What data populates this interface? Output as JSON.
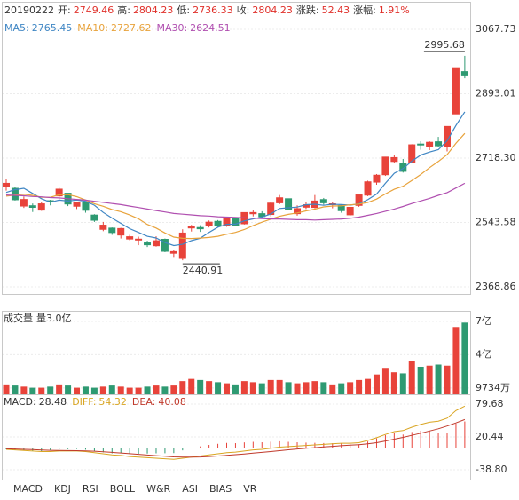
{
  "chart_data": {
    "type": "candlestick",
    "info": {
      "date": "20190222",
      "labels": [
        "开:",
        "高:",
        "低:",
        "收:",
        "涨跌:",
        "涨幅:"
      ],
      "change": 52.43,
      "change_pct_label": "1.91%"
    },
    "open": [
      2640.0,
      2636.3,
      2588.1,
      2588.9,
      2577.1,
      2602.5,
      2615.6,
      2622.9,
      2587.6,
      2597.6,
      2563.6,
      2524.9,
      2528.2,
      2509.5,
      2498.7,
      2497.4,
      2488.1,
      2480.5,
      2497.8,
      2460.0,
      2446.0,
      2528.7,
      2529.8,
      2534.1,
      2546.6,
      2534.6,
      2554.1,
      2540.0,
      2567.2,
      2567.4,
      2565.2,
      2596.9,
      2607.9,
      2567.4,
      2585.0,
      2584.4,
      2605.6,
      2592.5,
      2589.4,
      2564.3,
      2589.9,
      2617.7,
      2653.1,
      2673.2,
      2709.2,
      2702.7,
      2707.4,
      2756.4,
      2750.6,
      2762.6,
      2749.46,
      2838.3,
      2953.0
    ],
    "high": [
      2661,
      2640,
      2614,
      2595,
      2598,
      2605,
      2638,
      2623,
      2600,
      2598,
      2566,
      2545,
      2530,
      2529,
      2510,
      2505,
      2494,
      2506,
      2500,
      2469,
      2525,
      2537,
      2536,
      2549,
      2550,
      2556,
      2556,
      2571,
      2578,
      2574,
      2598,
      2618,
      2608,
      2590,
      2598,
      2618,
      2610,
      2598,
      2592,
      2586,
      2618.5,
      2657,
      2675,
      2722,
      2727,
      2716,
      2756,
      2764,
      2764,
      2776,
      2804.23,
      2961.5,
      2995.68
    ],
    "low": [
      2630,
      2603,
      2583,
      2572,
      2575,
      2590,
      2606,
      2588,
      2580,
      2570,
      2545,
      2520,
      2510,
      2500,
      2495,
      2482,
      2477,
      2478,
      2463,
      2450,
      2440.91,
      2519,
      2518,
      2530,
      2530,
      2532,
      2534,
      2538,
      2560,
      2555,
      2560,
      2593,
      2577,
      2562,
      2580,
      2582,
      2592,
      2582,
      2570,
      2562,
      2586,
      2615,
      2646,
      2670,
      2705,
      2679,
      2706,
      2741,
      2740,
      2748,
      2736.33,
      2838,
      2935
    ],
    "close": [
      2649.81,
      2605.18,
      2605.89,
      2584.58,
      2594.09,
      2602.15,
      2634.05,
      2593.74,
      2597.97,
      2576.65,
      2549.56,
      2536.27,
      2516.25,
      2527.01,
      2504.82,
      2498.29,
      2483.09,
      2493.9,
      2465.29,
      2464.36,
      2514.87,
      2533.09,
      2526.46,
      2544.34,
      2535.1,
      2553.83,
      2535.77,
      2570.34,
      2570.42,
      2559.64,
      2596.01,
      2610.51,
      2579.7,
      2581.0,
      2591.69,
      2601.72,
      2596.98,
      2594.25,
      2575.58,
      2584.57,
      2618.23,
      2653.9,
      2671.89,
      2721.07,
      2719.7,
      2682.39,
      2754.36,
      2755.65,
      2761.22,
      2751.8,
      2804.23,
      2961.28,
      2941.52
    ],
    "ylim": [
      2349.6,
      3099.1
    ],
    "yticks": [
      2368.86,
      2543.58,
      {
        "value": 2718.3,
        "label": "2718.30"
      },
      2893.01,
      3067.73
    ],
    "up_color": "#e8433a",
    "down_color": "#2e9a72",
    "ma": [
      {
        "name": "MA5:",
        "color": "#3f86c4",
        "values": [
          2625,
          2632.8,
          2636.3,
          2622.3,
          2607.9,
          2598.4,
          2604.2,
          2601.7,
          2604.4,
          2600.9,
          2590.4,
          2570.8,
          2555.3,
          2541.1,
          2526.8,
          2516.5,
          2505.9,
          2501.4,
          2489.1,
          2481.0,
          2484.3,
          2494.3,
          2500.8,
          2516.6,
          2530.8,
          2538.6,
          2539.1,
          2547.9,
          2553.1,
          2558.0,
          2566.4,
          2581.4,
          2583.3,
          2585.4,
          2591.8,
          2592.9,
          2590.2,
          2593.1,
          2592.0,
          2590.6,
          2593.9,
          2605.3,
          2620.8,
          2649.9,
          2677.0,
          2689.8,
          2709.9,
          2726.6,
          2734.7,
          2741.1,
          2765.45,
          2806.8,
          2844.0
        ]
      },
      {
        "name": "MA10:",
        "color": "#e8a33c",
        "values": [
          2615,
          2618,
          2620,
          2617,
          2612,
          2611.7,
          2618.5,
          2619.0,
          2613.4,
          2604.4,
          2594.4,
          2587.5,
          2578.5,
          2572.8,
          2563.9,
          2553.5,
          2538.4,
          2528.4,
          2515.1,
          2503.9,
          2500.4,
          2500.1,
          2501.1,
          2502.9,
          2505.9,
          2511.5,
          2516.7,
          2524.4,
          2534.9,
          2544.4,
          2552.5,
          2560.3,
          2565.6,
          2569.3,
          2574.9,
          2579.7,
          2585.8,
          2588.2,
          2588.7,
          2591.2,
          2593.4,
          2597.8,
          2607.0,
          2621.0,
          2633.8,
          2641.9,
          2657.6,
          2673.7,
          2692.3,
          2709.1,
          2727.62,
          2758.4,
          2785.3
        ]
      },
      {
        "name": "MA30:",
        "color": "#b04fb0",
        "values": [
          2618,
          2617,
          2616,
          2614,
          2613,
          2611,
          2610,
          2608,
          2606,
          2604,
          2601,
          2598,
          2595,
          2592,
          2588,
          2584,
          2580,
          2576,
          2572,
          2568,
          2566,
          2564,
          2562,
          2561,
          2559,
          2558,
          2557,
          2556,
          2555,
          2554,
          2553,
          2553,
          2552,
          2551,
          2551,
          2550,
          2551,
          2552,
          2553,
          2555,
          2558,
          2563,
          2568,
          2574,
          2580,
          2587,
          2595,
          2602,
          2609,
          2617,
          2624.51,
          2637,
          2650
        ]
      }
    ],
    "volume": {
      "title": "成交量",
      "current_label": "量3.0亿",
      "values": [
        1.3,
        1.2,
        1.1,
        1.0,
        1.0,
        1.1,
        1.3,
        1.2,
        1.0,
        1.1,
        1.0,
        1.1,
        1.2,
        1.1,
        1.0,
        1.0,
        1.1,
        1.2,
        1.1,
        1.2,
        1.6,
        1.8,
        1.7,
        1.6,
        1.5,
        1.4,
        1.3,
        1.6,
        1.5,
        1.4,
        1.7,
        1.7,
        1.5,
        1.4,
        1.5,
        1.6,
        1.5,
        1.3,
        1.4,
        1.5,
        1.7,
        1.8,
        2.2,
        2.8,
        2.4,
        2.3,
        3.4,
        2.9,
        3.0,
        3.1,
        3.0,
        6.5,
        6.9
      ],
      "ylim": [
        0.403,
        7.81
      ],
      "yticks": [
        {
          "value": 0.9734,
          "label": "9734万"
        },
        {
          "value": 4,
          "label": "4亿"
        },
        {
          "value": 7,
          "label": "7亿"
        }
      ]
    },
    "macd": {
      "series": [
        {
          "name": "MACD:",
          "color": "#333333",
          "values": [
            -2,
            -3.2,
            -4.2,
            -5,
            -5.6,
            -4.4,
            -2,
            -1.6,
            -1.2,
            -2.6,
            -5.2,
            -7.4,
            -9.2,
            -9,
            -10.4,
            -10,
            -9.6,
            -9.2,
            -9,
            -8.8,
            -3.8,
            0.2,
            3.4,
            6,
            8,
            9.6,
            9.2,
            10.6,
            11.6,
            10.8,
            11.8,
            12.6,
            11.6,
            10.8,
            10.2,
            9.8,
            9.4,
            9.2,
            8.8,
            7,
            7.2,
            12.2,
            17.8,
            23.8,
            27,
            24.8,
            29.4,
            31.6,
            31.6,
            27.8,
            28.48,
            44.6,
            48.4
          ]
        },
        {
          "name": "DIFF:",
          "color": "#d9a521",
          "values": [
            -2,
            -3,
            -4,
            -5,
            -6,
            -6,
            -5,
            -5,
            -5,
            -6,
            -8,
            -10,
            -12,
            -13,
            -15,
            -16,
            -17,
            -18,
            -19,
            -20,
            -18,
            -16,
            -14,
            -12,
            -10,
            -8,
            -7,
            -5,
            -3,
            -2,
            0,
            2,
            3,
            4,
            5,
            6,
            7,
            8,
            9,
            9,
            10,
            14,
            19,
            25,
            30,
            32,
            38,
            43,
            47,
            49,
            54.32,
            68,
            76
          ]
        },
        {
          "name": "DEA:",
          "color": "#c0392b",
          "values": [
            -1,
            -1.4,
            -1.9,
            -2.5,
            -3.2,
            -3.8,
            -4.0,
            -4.2,
            -4.4,
            -4.7,
            -5.4,
            -6.3,
            -7.4,
            -8.5,
            -9.8,
            -11.0,
            -12.2,
            -13.4,
            -14.5,
            -15.6,
            -16.1,
            -16.1,
            -15.7,
            -15.0,
            -14.0,
            -12.8,
            -11.6,
            -10.3,
            -8.8,
            -7.4,
            -5.9,
            -4.3,
            -2.8,
            -1.4,
            -0.1,
            1.1,
            2.3,
            3.4,
            4.6,
            5.5,
            6.4,
            7.9,
            10.1,
            13.1,
            16.5,
            19.6,
            23.3,
            27.2,
            31.2,
            35.1,
            40.08,
            45.7,
            51.8
          ]
        }
      ],
      "ylim": [
        -56.41,
        94.09
      ],
      "yticks": [
        {
          "value": -38.8,
          "label": "-38.80"
        },
        20.44,
        79.68
      ]
    },
    "tabs": [
      "MACD",
      "KDJ",
      "RSI",
      "BOLL",
      "W&R",
      "ASI",
      "BIAS",
      "VR"
    ],
    "active_tab": 0
  }
}
